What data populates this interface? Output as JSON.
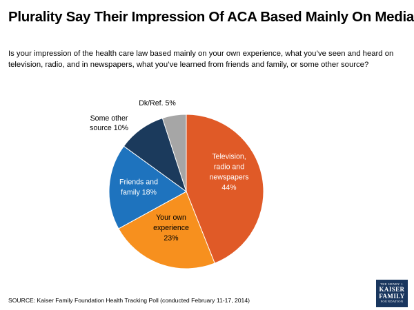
{
  "title": "Plurality Say Their Impression Of ACA Based Mainly On Media",
  "question": "Is your impression of the health care law based mainly on your own experience, what you’ve seen and heard on\ntelevision, radio, and in newspapers, what you’ve learned from friends and family, or some other source?",
  "source": "SOURCE: Kaiser Family Foundation Health Tracking Poll (conducted February 11-17, 2014)",
  "logo": {
    "line1": "THE HENRY J.",
    "line2": "KAISER",
    "line3": "FAMILY",
    "line4": "FOUNDATION"
  },
  "chart_data": {
    "type": "pie",
    "slices": [
      {
        "label_lines": [
          "Television,",
          "radio and",
          "newspapers",
          "44%"
        ],
        "value": 44,
        "color": "#e05a27",
        "label_color": "#ffffff"
      },
      {
        "label_lines": [
          "Your own",
          "experience",
          "23%"
        ],
        "value": 23,
        "color": "#f7901e",
        "label_color": "#000000"
      },
      {
        "label_lines": [
          "Friends and",
          "family 18%"
        ],
        "value": 18,
        "color": "#1e73be",
        "label_color": "#ffffff"
      },
      {
        "label_lines": [
          "Some other",
          "source 10%"
        ],
        "value": 10,
        "color": "#1b3a5c",
        "label_color": "#000000"
      },
      {
        "label_lines": [
          "Dk/Ref. 5%"
        ],
        "value": 5,
        "color": "#a6a6a6",
        "label_color": "#000000"
      }
    ]
  }
}
